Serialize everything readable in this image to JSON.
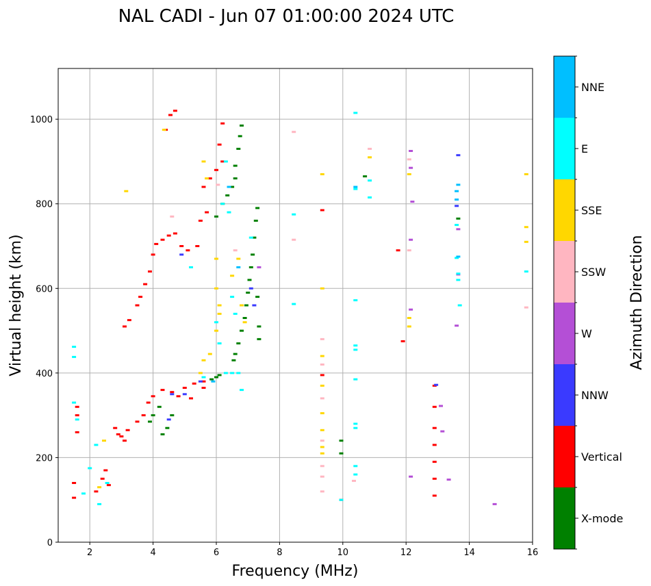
{
  "chart_data": {
    "type": "scatter",
    "title": "NAL CADI - Jun 07 01:00:00 2024 UTC",
    "xlabel": "Frequency (MHz)",
    "ylabel": "Virtual height (km)",
    "xlim": [
      1,
      16
    ],
    "ylim": [
      0,
      1120
    ],
    "xticks": [
      2,
      4,
      6,
      8,
      10,
      12,
      14,
      16
    ],
    "yticks": [
      0,
      200,
      400,
      600,
      800,
      1000
    ],
    "grid": true,
    "colorbar": {
      "label": "Azimuth Direction",
      "categories": [
        "X-mode",
        "Vertical",
        "NNW",
        "W",
        "SSW",
        "SSE",
        "E",
        "NNE"
      ],
      "colors": [
        "#008000",
        "#ff0000",
        "#3a3aff",
        "#b44fd6",
        "#ffb6c1",
        "#ffd700",
        "#00ffff",
        "#00bfff"
      ]
    },
    "series": [
      {
        "name": "X-mode",
        "points": [
          [
            4.3,
            255
          ],
          [
            4.45,
            270
          ],
          [
            4.6,
            300
          ],
          [
            5.85,
            385
          ],
          [
            6.0,
            390
          ],
          [
            6.1,
            395
          ],
          [
            6.55,
            430
          ],
          [
            6.6,
            445
          ],
          [
            6.7,
            470
          ],
          [
            6.8,
            500
          ],
          [
            6.9,
            530
          ],
          [
            6.95,
            560
          ],
          [
            7.0,
            590
          ],
          [
            7.05,
            620
          ],
          [
            7.1,
            650
          ],
          [
            7.15,
            680
          ],
          [
            7.2,
            720
          ],
          [
            7.25,
            760
          ],
          [
            7.3,
            790
          ],
          [
            6.5,
            840
          ],
          [
            6.6,
            860
          ],
          [
            6.6,
            890
          ],
          [
            6.7,
            930
          ],
          [
            6.75,
            960
          ],
          [
            6.8,
            985
          ],
          [
            6.0,
            770
          ],
          [
            6.2,
            800
          ],
          [
            6.35,
            820
          ],
          [
            10.7,
            865
          ],
          [
            13.65,
            765
          ],
          [
            9.95,
            210
          ],
          [
            9.95,
            240
          ],
          [
            3.9,
            285
          ],
          [
            4.0,
            300
          ],
          [
            4.2,
            320
          ],
          [
            7.3,
            580
          ],
          [
            7.35,
            510
          ],
          [
            7.35,
            480
          ]
        ]
      },
      {
        "name": "Vertical",
        "points": [
          [
            1.5,
            105
          ],
          [
            1.5,
            140
          ],
          [
            1.6,
            260
          ],
          [
            1.6,
            300
          ],
          [
            1.6,
            320
          ],
          [
            2.2,
            120
          ],
          [
            2.4,
            150
          ],
          [
            2.5,
            170
          ],
          [
            2.6,
            135
          ],
          [
            2.8,
            270
          ],
          [
            2.9,
            255
          ],
          [
            3.0,
            250
          ],
          [
            3.1,
            240
          ],
          [
            3.2,
            265
          ],
          [
            3.5,
            285
          ],
          [
            3.7,
            300
          ],
          [
            3.85,
            330
          ],
          [
            4.0,
            345
          ],
          [
            4.3,
            360
          ],
          [
            4.6,
            355
          ],
          [
            5.0,
            365
          ],
          [
            5.3,
            375
          ],
          [
            5.6,
            380
          ],
          [
            5.6,
            365
          ],
          [
            3.1,
            510
          ],
          [
            3.25,
            525
          ],
          [
            3.5,
            560
          ],
          [
            3.6,
            580
          ],
          [
            3.75,
            610
          ],
          [
            3.9,
            640
          ],
          [
            4.0,
            680
          ],
          [
            4.1,
            705
          ],
          [
            4.3,
            715
          ],
          [
            4.5,
            725
          ],
          [
            4.7,
            730
          ],
          [
            4.9,
            700
          ],
          [
            5.1,
            690
          ],
          [
            5.4,
            700
          ],
          [
            5.5,
            760
          ],
          [
            5.7,
            780
          ],
          [
            5.6,
            840
          ],
          [
            5.8,
            860
          ],
          [
            6.0,
            880
          ],
          [
            6.2,
            900
          ],
          [
            6.1,
            940
          ],
          [
            6.2,
            990
          ],
          [
            4.4,
            975
          ],
          [
            4.55,
            1010
          ],
          [
            4.7,
            1020
          ],
          [
            9.35,
            785
          ],
          [
            11.75,
            690
          ],
          [
            11.9,
            475
          ],
          [
            12.9,
            370
          ],
          [
            12.9,
            320
          ],
          [
            12.9,
            270
          ],
          [
            12.9,
            230
          ],
          [
            12.9,
            190
          ],
          [
            12.9,
            150
          ],
          [
            12.9,
            110
          ],
          [
            9.35,
            395
          ],
          [
            9.95,
            100
          ],
          [
            5.2,
            340
          ],
          [
            4.8,
            345
          ]
        ]
      },
      {
        "name": "NNW",
        "points": [
          [
            12.95,
            372
          ],
          [
            4.5,
            290
          ],
          [
            4.6,
            350
          ],
          [
            5.0,
            350
          ],
          [
            5.5,
            380
          ],
          [
            13.65,
            915
          ],
          [
            13.6,
            795
          ],
          [
            7.1,
            600
          ],
          [
            7.2,
            560
          ],
          [
            4.9,
            680
          ]
        ]
      },
      {
        "name": "W",
        "points": [
          [
            13.1,
            322
          ],
          [
            13.15,
            262
          ],
          [
            13.35,
            148
          ],
          [
            14.8,
            90
          ],
          [
            13.65,
            633
          ],
          [
            13.6,
            512
          ],
          [
            13.65,
            740
          ],
          [
            7.35,
            650
          ],
          [
            12.15,
            925
          ],
          [
            12.15,
            885
          ],
          [
            12.15,
            715
          ],
          [
            12.15,
            550
          ],
          [
            12.15,
            155
          ],
          [
            12.2,
            805
          ]
        ]
      },
      {
        "name": "SSW",
        "points": [
          [
            8.45,
            970
          ],
          [
            8.45,
            715
          ],
          [
            9.35,
            480
          ],
          [
            9.35,
            420
          ],
          [
            9.35,
            340
          ],
          [
            9.35,
            240
          ],
          [
            9.35,
            180
          ],
          [
            9.35,
            155
          ],
          [
            9.35,
            120
          ],
          [
            10.35,
            145
          ],
          [
            10.85,
            930
          ],
          [
            12.1,
            905
          ],
          [
            12.1,
            690
          ],
          [
            15.8,
            555
          ],
          [
            6.05,
            845
          ],
          [
            6.6,
            690
          ],
          [
            4.6,
            770
          ]
        ]
      },
      {
        "name": "SSE",
        "points": [
          [
            3.15,
            830
          ],
          [
            4.35,
            975
          ],
          [
            5.7,
            860
          ],
          [
            5.6,
            900
          ],
          [
            6.0,
            670
          ],
          [
            6.0,
            600
          ],
          [
            6.1,
            560
          ],
          [
            6.1,
            540
          ],
          [
            6.0,
            500
          ],
          [
            5.8,
            445
          ],
          [
            5.6,
            430
          ],
          [
            5.5,
            400
          ],
          [
            6.5,
            630
          ],
          [
            6.7,
            670
          ],
          [
            6.8,
            560
          ],
          [
            6.9,
            520
          ],
          [
            9.35,
            600
          ],
          [
            9.35,
            440
          ],
          [
            9.35,
            370
          ],
          [
            9.35,
            305
          ],
          [
            9.35,
            265
          ],
          [
            9.35,
            225
          ],
          [
            9.35,
            210
          ],
          [
            9.35,
            870
          ],
          [
            10.85,
            910
          ],
          [
            12.1,
            870
          ],
          [
            12.1,
            530
          ],
          [
            12.1,
            510
          ],
          [
            15.8,
            710
          ],
          [
            15.8,
            870
          ],
          [
            15.8,
            745
          ],
          [
            2.45,
            240
          ],
          [
            2.3,
            130
          ]
        ]
      },
      {
        "name": "E",
        "points": [
          [
            1.5,
            462
          ],
          [
            1.5,
            438
          ],
          [
            1.5,
            330
          ],
          [
            1.6,
            290
          ],
          [
            1.8,
            115
          ],
          [
            2.0,
            175
          ],
          [
            2.3,
            90
          ],
          [
            2.2,
            230
          ],
          [
            2.55,
            140
          ],
          [
            5.2,
            650
          ],
          [
            5.6,
            390
          ],
          [
            6.3,
            400
          ],
          [
            6.5,
            400
          ],
          [
            6.7,
            400
          ],
          [
            6.8,
            360
          ],
          [
            6.0,
            520
          ],
          [
            6.1,
            470
          ],
          [
            6.5,
            580
          ],
          [
            6.6,
            540
          ],
          [
            7.1,
            720
          ],
          [
            6.3,
            900
          ],
          [
            6.2,
            800
          ],
          [
            6.4,
            780
          ],
          [
            8.45,
            775
          ],
          [
            8.45,
            563
          ],
          [
            10.4,
            1015
          ],
          [
            10.4,
            835
          ],
          [
            10.4,
            572
          ],
          [
            10.4,
            465
          ],
          [
            10.4,
            455
          ],
          [
            10.4,
            385
          ],
          [
            10.4,
            280
          ],
          [
            10.4,
            270
          ],
          [
            10.4,
            180
          ],
          [
            10.4,
            160
          ],
          [
            10.85,
            815
          ],
          [
            10.85,
            855
          ],
          [
            13.65,
            635
          ],
          [
            13.65,
            620
          ],
          [
            13.6,
            750
          ],
          [
            13.6,
            672
          ],
          [
            13.7,
            560
          ],
          [
            15.8,
            640
          ],
          [
            9.95,
            100
          ]
        ]
      },
      {
        "name": "NNE",
        "points": [
          [
            13.65,
            845
          ],
          [
            13.6,
            830
          ],
          [
            13.6,
            810
          ],
          [
            13.65,
            675
          ],
          [
            6.4,
            840
          ],
          [
            6.7,
            650
          ],
          [
            10.4,
            840
          ],
          [
            5.9,
            380
          ]
        ]
      }
    ]
  }
}
